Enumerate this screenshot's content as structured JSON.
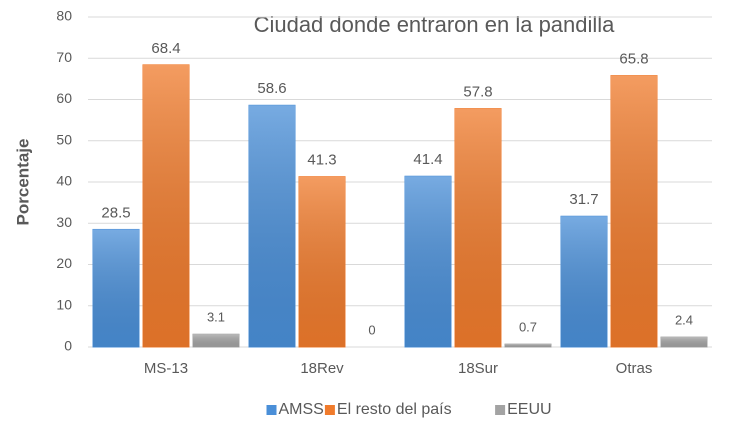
{
  "chart_data": {
    "type": "bar",
    "title": "Ciudad donde entraron en la pandilla",
    "y_label": "Porcentaje",
    "categories": [
      "MS-13",
      "18Rev",
      "18Sur",
      "Otras"
    ],
    "series": [
      {
        "name": "AMSS",
        "color": "#4a8fd8",
        "values": [
          28.5,
          58.6,
          41.4,
          31.7
        ]
      },
      {
        "name": "El resto del país",
        "color": "#f07b2c",
        "values": [
          68.4,
          41.3,
          57.8,
          65.8
        ]
      },
      {
        "name": "EEUU",
        "color": "#a3a3a3",
        "values": [
          3.1,
          0,
          0.7,
          2.4
        ]
      }
    ],
    "ylim": [
      0,
      80
    ],
    "yticks": [
      0,
      10,
      20,
      30,
      40,
      50,
      60,
      70,
      80
    ],
    "grid": true,
    "legend": "bottom"
  }
}
